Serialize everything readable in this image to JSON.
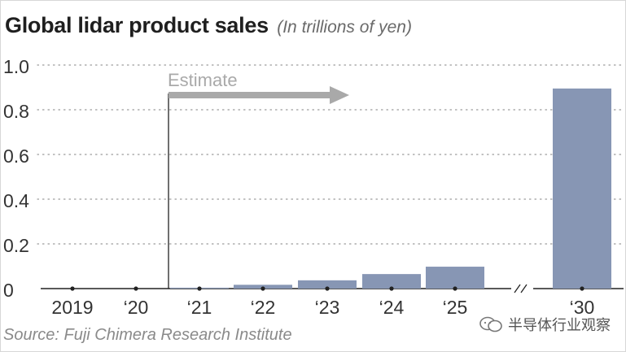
{
  "chart_data": {
    "type": "bar",
    "title": "Global lidar product sales",
    "subtitle": "(In trillions of yen)",
    "categories": [
      "2019",
      "‘20",
      "‘21",
      "‘22",
      "‘23",
      "‘24",
      "‘25",
      "‘30"
    ],
    "values": [
      0,
      0,
      0.004,
      0.017,
      0.037,
      0.065,
      0.098,
      0.895
    ],
    "ylim": [
      0,
      1.0
    ],
    "yticks": [
      "0",
      "0.2",
      "0.4",
      "0.6",
      "0.8",
      "1.0"
    ],
    "ytick_values": [
      0,
      0.2,
      0.4,
      0.6,
      0.8,
      1.0
    ],
    "grid": true,
    "axis_break_between": [
      "‘25",
      "‘30"
    ],
    "annotation": {
      "text": "Estimate",
      "starts_at": "‘21"
    },
    "bar_color": "#8796b4",
    "annotation_color": "#a9a9a9"
  },
  "source": "Source: Fuji Chimera Research Institute",
  "watermark": "半导体行业观察"
}
